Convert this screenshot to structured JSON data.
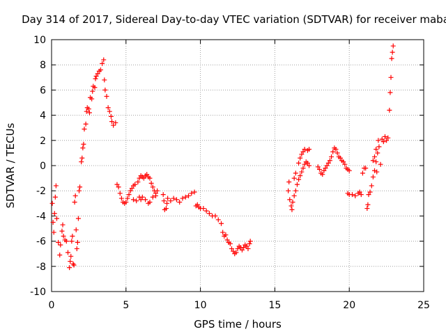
{
  "chart_data": {
    "type": "scatter",
    "title": "Day 314 of 2017, Sidereal Day-to-day VTEC variation (SDTVAR) for receiver maba",
    "xlabel": "GPS time / hours",
    "ylabel": "SDTVAR / TECUs",
    "xlim": [
      0,
      25
    ],
    "ylim": [
      -10,
      10
    ],
    "xticks": [
      0,
      5,
      10,
      15,
      20,
      25
    ],
    "yticks": [
      -10,
      -8,
      -6,
      -4,
      -2,
      0,
      2,
      4,
      6,
      8,
      10
    ],
    "grid": true,
    "marker": "+",
    "series": [
      {
        "name": "maba",
        "color": "#ff0000",
        "points": [
          [
            0.05,
            -3.0
          ],
          [
            0.1,
            -4.5
          ],
          [
            0.15,
            -5.3
          ],
          [
            0.2,
            -3.8
          ],
          [
            0.25,
            -2.5
          ],
          [
            0.3,
            -1.6
          ],
          [
            0.35,
            -4.2
          ],
          [
            0.45,
            -6.1
          ],
          [
            0.55,
            -7.1
          ],
          [
            0.6,
            -6.3
          ],
          [
            0.7,
            -5.2
          ],
          [
            0.75,
            -4.7
          ],
          [
            0.8,
            -5.6
          ],
          [
            0.9,
            -5.9
          ],
          [
            1.0,
            -6.0
          ],
          [
            1.1,
            -6.9
          ],
          [
            1.2,
            -8.1
          ],
          [
            1.25,
            -7.6
          ],
          [
            1.3,
            -7.2
          ],
          [
            1.35,
            -6.0
          ],
          [
            1.4,
            -5.6
          ],
          [
            1.45,
            -7.8
          ],
          [
            1.5,
            -7.9
          ],
          [
            1.55,
            -2.9
          ],
          [
            1.6,
            -2.4
          ],
          [
            1.65,
            -5.1
          ],
          [
            1.7,
            -6.6
          ],
          [
            1.75,
            -6.1
          ],
          [
            1.8,
            -4.2
          ],
          [
            1.85,
            -2.0
          ],
          [
            1.9,
            -1.7
          ],
          [
            2.0,
            0.3
          ],
          [
            2.05,
            0.6
          ],
          [
            2.1,
            1.4
          ],
          [
            2.15,
            1.7
          ],
          [
            2.2,
            2.9
          ],
          [
            2.3,
            3.3
          ],
          [
            2.35,
            4.3
          ],
          [
            2.4,
            4.6
          ],
          [
            2.5,
            4.5
          ],
          [
            2.55,
            4.2
          ],
          [
            2.6,
            5.4
          ],
          [
            2.7,
            5.3
          ],
          [
            2.75,
            5.9
          ],
          [
            2.8,
            6.3
          ],
          [
            2.9,
            6.2
          ],
          [
            2.95,
            6.9
          ],
          [
            3.0,
            7.1
          ],
          [
            3.1,
            7.3
          ],
          [
            3.2,
            7.5
          ],
          [
            3.3,
            7.6
          ],
          [
            3.4,
            8.1
          ],
          [
            3.5,
            8.4
          ],
          [
            3.55,
            6.8
          ],
          [
            3.6,
            6.0
          ],
          [
            3.7,
            5.5
          ],
          [
            3.8,
            4.6
          ],
          [
            3.9,
            4.3
          ],
          [
            4.0,
            3.9
          ],
          [
            4.05,
            3.5
          ],
          [
            4.15,
            3.2
          ],
          [
            4.3,
            3.4
          ],
          [
            4.4,
            -1.5
          ],
          [
            4.5,
            -1.7
          ],
          [
            4.6,
            -2.2
          ],
          [
            4.7,
            -2.6
          ],
          [
            4.8,
            -2.9
          ],
          [
            4.9,
            -3.0
          ],
          [
            5.0,
            -2.9
          ],
          [
            5.1,
            -2.6
          ],
          [
            5.2,
            -2.3
          ],
          [
            5.3,
            -2.0
          ],
          [
            5.4,
            -1.8
          ],
          [
            5.5,
            -1.6
          ],
          [
            5.6,
            -1.5
          ],
          [
            5.8,
            -1.3
          ],
          [
            5.9,
            -1.0
          ],
          [
            6.0,
            -0.8
          ],
          [
            6.1,
            -0.9
          ],
          [
            6.2,
            -1.0
          ],
          [
            6.3,
            -0.8
          ],
          [
            6.4,
            -0.7
          ],
          [
            6.5,
            -0.9
          ],
          [
            6.6,
            -1.0
          ],
          [
            6.7,
            -1.4
          ],
          [
            6.8,
            -1.7
          ],
          [
            6.9,
            -2.0
          ],
          [
            5.5,
            -2.7
          ],
          [
            5.7,
            -2.8
          ],
          [
            5.9,
            -2.5
          ],
          [
            6.0,
            -2.7
          ],
          [
            6.1,
            -2.5
          ],
          [
            6.3,
            -2.7
          ],
          [
            6.5,
            -3.0
          ],
          [
            6.6,
            -2.9
          ],
          [
            6.8,
            -2.5
          ],
          [
            7.0,
            -2.2
          ],
          [
            7.1,
            -2.0
          ],
          [
            7.0,
            -2.4
          ],
          [
            7.5,
            -2.3
          ],
          [
            7.55,
            -2.8
          ],
          [
            7.6,
            -3.5
          ],
          [
            7.7,
            -3.4
          ],
          [
            7.75,
            -3.0
          ],
          [
            7.8,
            -2.6
          ],
          [
            8.0,
            -2.8
          ],
          [
            8.2,
            -2.6
          ],
          [
            8.4,
            -2.7
          ],
          [
            8.6,
            -2.9
          ],
          [
            8.8,
            -2.6
          ],
          [
            9.0,
            -2.5
          ],
          [
            9.2,
            -2.4
          ],
          [
            9.4,
            -2.2
          ],
          [
            9.6,
            -2.1
          ],
          [
            9.7,
            -3.2
          ],
          [
            9.8,
            -3.1
          ],
          [
            9.9,
            -3.3
          ],
          [
            10.0,
            -3.4
          ],
          [
            10.2,
            -3.4
          ],
          [
            10.4,
            -3.6
          ],
          [
            10.6,
            -3.8
          ],
          [
            10.8,
            -4.0
          ],
          [
            11.0,
            -4.0
          ],
          [
            11.2,
            -4.3
          ],
          [
            11.4,
            -4.6
          ],
          [
            11.5,
            -5.3
          ],
          [
            11.6,
            -5.6
          ],
          [
            11.7,
            -5.5
          ],
          [
            11.8,
            -5.9
          ],
          [
            11.9,
            -6.1
          ],
          [
            12.0,
            -6.2
          ],
          [
            12.1,
            -6.6
          ],
          [
            12.2,
            -6.8
          ],
          [
            12.3,
            -7.0
          ],
          [
            12.4,
            -6.9
          ],
          [
            12.5,
            -6.6
          ],
          [
            12.6,
            -6.4
          ],
          [
            12.7,
            -6.5
          ],
          [
            12.8,
            -6.7
          ],
          [
            12.9,
            -6.5
          ],
          [
            13.0,
            -6.3
          ],
          [
            13.1,
            -6.4
          ],
          [
            13.2,
            -6.6
          ],
          [
            13.3,
            -6.2
          ],
          [
            13.35,
            -6.0
          ],
          [
            15.9,
            -2.0
          ],
          [
            15.95,
            -1.3
          ],
          [
            16.0,
            -2.7
          ],
          [
            16.1,
            -3.2
          ],
          [
            16.15,
            -3.5
          ],
          [
            16.2,
            -2.9
          ],
          [
            16.3,
            -2.4
          ],
          [
            16.4,
            -2.0
          ],
          [
            16.5,
            -1.5
          ],
          [
            16.6,
            -1.1
          ],
          [
            16.7,
            -0.8
          ],
          [
            16.8,
            -0.5
          ],
          [
            16.9,
            -0.2
          ],
          [
            17.0,
            0.1
          ],
          [
            17.1,
            0.3
          ],
          [
            17.2,
            0.2
          ],
          [
            17.3,
            0.0
          ],
          [
            16.3,
            -1.0
          ],
          [
            16.4,
            -0.6
          ],
          [
            16.6,
            0.2
          ],
          [
            16.7,
            0.6
          ],
          [
            16.8,
            0.9
          ],
          [
            16.9,
            1.1
          ],
          [
            17.0,
            1.3
          ],
          [
            17.2,
            1.2
          ],
          [
            17.3,
            1.3
          ],
          [
            17.9,
            -0.1
          ],
          [
            18.0,
            -0.3
          ],
          [
            18.1,
            -0.6
          ],
          [
            18.2,
            -0.7
          ],
          [
            18.3,
            -0.4
          ],
          [
            18.4,
            -0.2
          ],
          [
            18.5,
            0.0
          ],
          [
            18.6,
            0.2
          ],
          [
            18.7,
            0.4
          ],
          [
            18.8,
            0.7
          ],
          [
            18.9,
            1.1
          ],
          [
            19.0,
            1.4
          ],
          [
            19.1,
            1.3
          ],
          [
            19.2,
            1.0
          ],
          [
            19.3,
            0.7
          ],
          [
            19.4,
            0.6
          ],
          [
            19.5,
            0.4
          ],
          [
            19.6,
            0.3
          ],
          [
            19.7,
            0.1
          ],
          [
            19.8,
            -0.2
          ],
          [
            19.9,
            -0.3
          ],
          [
            20.0,
            -0.4
          ],
          [
            19.9,
            -2.2
          ],
          [
            20.0,
            -2.3
          ],
          [
            20.2,
            -2.3
          ],
          [
            20.4,
            -2.4
          ],
          [
            20.6,
            -2.2
          ],
          [
            20.7,
            -2.1
          ],
          [
            20.8,
            -2.3
          ],
          [
            20.9,
            -0.6
          ],
          [
            21.0,
            -0.2
          ],
          [
            21.1,
            -0.2
          ],
          [
            21.2,
            -3.4
          ],
          [
            21.25,
            -3.1
          ],
          [
            21.3,
            -2.3
          ],
          [
            21.4,
            -2.1
          ],
          [
            21.5,
            -1.6
          ],
          [
            21.6,
            -0.9
          ],
          [
            21.6,
            0.4
          ],
          [
            21.7,
            0.7
          ],
          [
            21.7,
            -0.4
          ],
          [
            21.8,
            1.3
          ],
          [
            21.8,
            0.3
          ],
          [
            21.85,
            -0.5
          ],
          [
            21.9,
            1.0
          ],
          [
            21.95,
            2.0
          ],
          [
            22.0,
            1.5
          ],
          [
            22.1,
            0.1
          ],
          [
            22.2,
            2.1
          ],
          [
            22.3,
            1.9
          ],
          [
            22.4,
            2.3
          ],
          [
            22.5,
            2.0
          ],
          [
            22.6,
            2.2
          ],
          [
            22.7,
            4.4
          ],
          [
            22.75,
            5.8
          ],
          [
            22.8,
            7.0
          ],
          [
            22.85,
            8.5
          ],
          [
            22.9,
            9.0
          ],
          [
            22.95,
            9.5
          ]
        ]
      }
    ]
  }
}
